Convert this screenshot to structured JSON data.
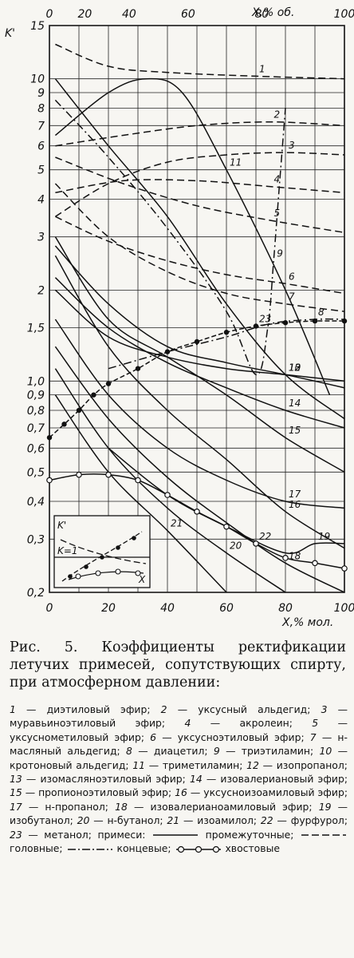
{
  "chart_data": {
    "type": "line",
    "y_axis_label": "K'",
    "x_bottom_label": "X,% мол.",
    "x_top_label": "X,% об.",
    "x_bottom_ticks": [
      "0",
      "20",
      "40",
      "60",
      "80",
      "100"
    ],
    "x_top_ticks": [
      "0",
      "20",
      "40",
      "60",
      "80",
      "100"
    ],
    "y_ticks": [
      "0,2",
      "0,3",
      "0,4",
      "0,5",
      "0,6",
      "0,7",
      "0,8",
      "0,9",
      "1,0",
      "1,5",
      "2",
      "3",
      "4",
      "5",
      "6",
      "7",
      "8",
      "9",
      "10",
      "15"
    ],
    "x_range": [
      0,
      100
    ],
    "y_range": [
      0.2,
      15
    ],
    "y_scale": "log",
    "grid": true,
    "series": [
      {
        "name": "1",
        "style": "dashed",
        "points": [
          [
            2,
            13
          ],
          [
            20,
            11
          ],
          [
            40,
            10.5
          ],
          [
            70,
            10.2
          ],
          [
            100,
            10
          ]
        ]
      },
      {
        "name": "2",
        "style": "dashed",
        "points": [
          [
            2,
            6
          ],
          [
            25,
            6.5
          ],
          [
            50,
            7
          ],
          [
            75,
            7.2
          ],
          [
            100,
            7
          ]
        ]
      },
      {
        "name": "3",
        "style": "dashed",
        "points": [
          [
            2,
            3.5
          ],
          [
            20,
            4.5
          ],
          [
            40,
            5.3
          ],
          [
            60,
            5.6
          ],
          [
            80,
            5.7
          ],
          [
            100,
            5.6
          ]
        ]
      },
      {
        "name": "4",
        "style": "dashed",
        "points": [
          [
            2,
            4.2
          ],
          [
            25,
            4.6
          ],
          [
            50,
            4.6
          ],
          [
            75,
            4.4
          ],
          [
            100,
            4.2
          ]
        ]
      },
      {
        "name": "5",
        "style": "dashed",
        "points": [
          [
            2,
            5.5
          ],
          [
            25,
            4.5
          ],
          [
            50,
            3.8
          ],
          [
            75,
            3.4
          ],
          [
            100,
            3.1
          ]
        ]
      },
      {
        "name": "6",
        "style": "dashed",
        "points": [
          [
            2,
            3.5
          ],
          [
            20,
            2.9
          ],
          [
            40,
            2.5
          ],
          [
            60,
            2.25
          ],
          [
            80,
            2.1
          ],
          [
            100,
            1.95
          ]
        ]
      },
      {
        "name": "7",
        "style": "dashed",
        "points": [
          [
            2,
            4.5
          ],
          [
            20,
            3.0
          ],
          [
            40,
            2.3
          ],
          [
            60,
            1.95
          ],
          [
            80,
            1.8
          ],
          [
            100,
            1.7
          ]
        ]
      },
      {
        "name": "8",
        "style": "dashdot",
        "points": [
          [
            20,
            1.1
          ],
          [
            40,
            1.25
          ],
          [
            60,
            1.4
          ],
          [
            75,
            1.55
          ],
          [
            90,
            1.6
          ],
          [
            100,
            1.6
          ]
        ]
      },
      {
        "name": "9",
        "style": "dashdot",
        "points": [
          [
            2,
            8.5
          ],
          [
            20,
            5.5
          ],
          [
            40,
            3.2
          ],
          [
            60,
            1.7
          ],
          [
            70,
            1.05
          ],
          [
            74,
            1.5
          ],
          [
            76,
            2.5
          ],
          [
            78,
            4.5
          ],
          [
            80,
            8
          ]
        ]
      },
      {
        "name": "10",
        "style": "solid",
        "points": [
          [
            2,
            2.8
          ],
          [
            20,
            1.8
          ],
          [
            40,
            1.3
          ],
          [
            60,
            1.15
          ],
          [
            80,
            1.05
          ],
          [
            100,
            0.95
          ]
        ]
      },
      {
        "name": "11",
        "style": "solid",
        "points": [
          [
            2,
            6.5
          ],
          [
            20,
            9
          ],
          [
            33,
            10
          ],
          [
            45,
            9
          ],
          [
            60,
            5
          ],
          [
            80,
            2
          ],
          [
            95,
            0.9
          ]
        ]
      },
      {
        "name": "12",
        "style": "solid",
        "points": [
          [
            2,
            10
          ],
          [
            20,
            6
          ],
          [
            40,
            3.5
          ],
          [
            60,
            1.8
          ],
          [
            80,
            1.05
          ],
          [
            100,
            0.75
          ]
        ]
      },
      {
        "name": "13",
        "style": "solid",
        "points": [
          [
            2,
            2.0
          ],
          [
            20,
            1.4
          ],
          [
            40,
            1.2
          ],
          [
            60,
            1.1
          ],
          [
            80,
            1.05
          ],
          [
            100,
            1.0
          ]
        ]
      },
      {
        "name": "14",
        "style": "solid",
        "points": [
          [
            2,
            2.2
          ],
          [
            20,
            1.5
          ],
          [
            40,
            1.15
          ],
          [
            60,
            0.95
          ],
          [
            80,
            0.8
          ],
          [
            100,
            0.7
          ]
        ]
      },
      {
        "name": "15",
        "style": "solid",
        "points": [
          [
            2,
            3.0
          ],
          [
            20,
            1.6
          ],
          [
            40,
            1.2
          ],
          [
            60,
            0.9
          ],
          [
            80,
            0.65
          ],
          [
            100,
            0.5
          ]
        ]
      },
      {
        "name": "16",
        "style": "solid",
        "points": [
          [
            2,
            2.6
          ],
          [
            20,
            1.3
          ],
          [
            40,
            0.8
          ],
          [
            60,
            0.55
          ],
          [
            80,
            0.37
          ],
          [
            100,
            0.28
          ]
        ]
      },
      {
        "name": "17",
        "style": "solid",
        "points": [
          [
            2,
            1.6
          ],
          [
            20,
            0.9
          ],
          [
            40,
            0.6
          ],
          [
            60,
            0.47
          ],
          [
            80,
            0.4
          ],
          [
            100,
            0.38
          ]
        ]
      },
      {
        "name": "18",
        "style": "solid",
        "points": [
          [
            2,
            1.3
          ],
          [
            20,
            0.75
          ],
          [
            40,
            0.48
          ],
          [
            60,
            0.34
          ],
          [
            80,
            0.25
          ],
          [
            100,
            0.2
          ]
        ]
      },
      {
        "name": "19",
        "style": "solid",
        "points": [
          [
            20,
            0.6
          ],
          [
            40,
            0.42
          ],
          [
            60,
            0.33
          ],
          [
            80,
            0.27
          ],
          [
            90,
            0.29
          ],
          [
            100,
            0.29
          ]
        ]
      },
      {
        "name": "20",
        "style": "solid",
        "points": [
          [
            2,
            1.1
          ],
          [
            20,
            0.6
          ],
          [
            40,
            0.38
          ],
          [
            60,
            0.27
          ],
          [
            80,
            0.2
          ]
        ]
      },
      {
        "name": "21",
        "style": "solid",
        "points": [
          [
            2,
            0.9
          ],
          [
            20,
            0.5
          ],
          [
            40,
            0.32
          ],
          [
            60,
            0.2
          ]
        ]
      },
      {
        "name": "22",
        "style": "circles",
        "points": [
          [
            0,
            0.47
          ],
          [
            10,
            0.49
          ],
          [
            20,
            0.49
          ],
          [
            30,
            0.47
          ],
          [
            40,
            0.42
          ],
          [
            50,
            0.37
          ],
          [
            60,
            0.33
          ],
          [
            70,
            0.29
          ],
          [
            80,
            0.26
          ],
          [
            90,
            0.25
          ],
          [
            100,
            0.24
          ]
        ]
      },
      {
        "name": "23",
        "style": "dots",
        "points": [
          [
            0,
            0.65
          ],
          [
            5,
            0.72
          ],
          [
            10,
            0.8
          ],
          [
            15,
            0.9
          ],
          [
            20,
            0.98
          ],
          [
            30,
            1.1
          ],
          [
            40,
            1.25
          ],
          [
            50,
            1.35
          ],
          [
            60,
            1.45
          ],
          [
            70,
            1.52
          ],
          [
            80,
            1.56
          ],
          [
            90,
            1.58
          ],
          [
            100,
            1.58
          ]
        ]
      }
    ],
    "inset": {
      "y_label": "K'",
      "ref_label": "K=1",
      "x_label": "X"
    }
  },
  "caption": {
    "title": "Рис. 5. Коэффициенты ректификации летучих примесей, сопутствующих спирту, при атмосферном давлении:"
  },
  "legend": {
    "entries": [
      {
        "num": "1",
        "text": "диэтиловый эфир;"
      },
      {
        "num": "2",
        "text": "уксусный альдегид;"
      },
      {
        "num": "3",
        "text": "муравьиноэтиловый эфир;"
      },
      {
        "num": "4",
        "text": "акролеин;"
      },
      {
        "num": "5",
        "text": "уксуснометиловый эфир;"
      },
      {
        "num": "6",
        "text": "уксусноэтиловый эфир;"
      },
      {
        "num": "7",
        "text": "н-масляный альдегид;"
      },
      {
        "num": "8",
        "text": "диацетил;"
      },
      {
        "num": "9",
        "text": "триэтиламин;"
      },
      {
        "num": "10",
        "text": "кротоновый альдегид;"
      },
      {
        "num": "11",
        "text": "триметиламин;"
      },
      {
        "num": "12",
        "text": "изопропанол;"
      },
      {
        "num": "13",
        "text": "изомасляноэтиловый эфир;"
      },
      {
        "num": "14",
        "text": "изовалериановый эфир;"
      },
      {
        "num": "15",
        "text": "пропионоэтиловый эфир;"
      },
      {
        "num": "16",
        "text": "уксусноизоамиловый эфир;"
      },
      {
        "num": "17",
        "text": "н-пропанол;"
      },
      {
        "num": "18",
        "text": "изовалерианоамиловый эфир;"
      },
      {
        "num": "19",
        "text": "изобутанол;"
      },
      {
        "num": "20",
        "text": "н-бутанол;"
      },
      {
        "num": "21",
        "text": "изоамилол;"
      },
      {
        "num": "22",
        "text": "фурфурол;"
      },
      {
        "num": "23",
        "text": "метанол;"
      }
    ],
    "impurities_label": "примеси:",
    "type_intermediate": "промежуточные;",
    "type_head": "головные;",
    "type_tail": "концевые;",
    "type_tail_bottom": "хвостовые"
  }
}
